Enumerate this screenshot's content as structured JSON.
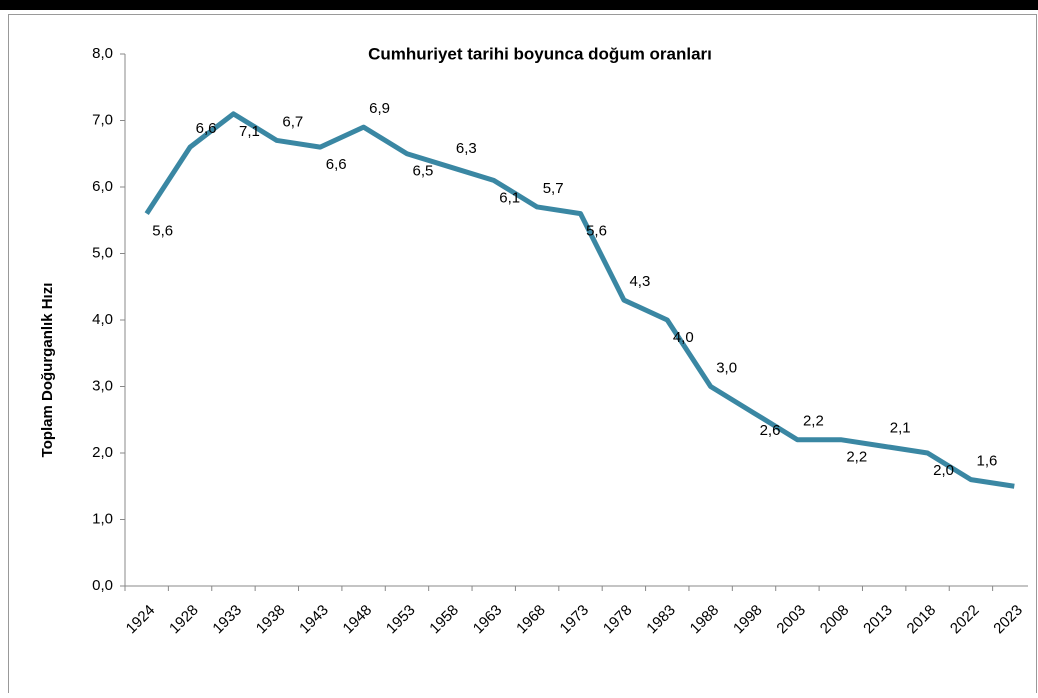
{
  "chart_data": {
    "type": "line",
    "title": "Cumhuriyet tarihi boyunca doğum oranları",
    "y_label": "Toplam Doğurganlık Hızı",
    "categories": [
      "1924",
      "1928",
      "1933",
      "1938",
      "1943",
      "1948",
      "1953",
      "1958",
      "1963",
      "1968",
      "1973",
      "1978",
      "1983",
      "1988",
      "1998",
      "2003",
      "2008",
      "2013",
      "2018",
      "2022",
      "2023"
    ],
    "values": [
      5.6,
      6.6,
      7.1,
      6.7,
      6.6,
      6.9,
      6.5,
      6.3,
      6.1,
      5.7,
      5.6,
      4.3,
      4.0,
      3.0,
      2.6,
      2.2,
      2.2,
      2.1,
      2.0,
      1.6,
      1.5
    ],
    "value_labels": [
      "5,6",
      "6,6",
      "7,1",
      "6,7",
      "6,6",
      "6,9",
      "6,5",
      "6,3",
      "6,1",
      "5,7",
      "5,6",
      "4,3",
      "4,0",
      "3,0",
      "2,6",
      "2,2",
      "2,2",
      "2,1",
      "2,0",
      "1,6",
      null
    ],
    "color": "#3a87a3",
    "ylim": [
      0,
      8
    ],
    "yticks": [
      {
        "value": 0,
        "label": "0,0"
      },
      {
        "value": 1,
        "label": "1,0"
      },
      {
        "value": 2,
        "label": "2,0"
      },
      {
        "value": 3,
        "label": "3,0"
      },
      {
        "value": 4,
        "label": "4,0"
      },
      {
        "value": 5,
        "label": "5,0"
      },
      {
        "value": 6,
        "label": "6,0"
      },
      {
        "value": 7,
        "label": "7,0"
      },
      {
        "value": 8,
        "label": "8,0"
      }
    ],
    "grid": false
  }
}
